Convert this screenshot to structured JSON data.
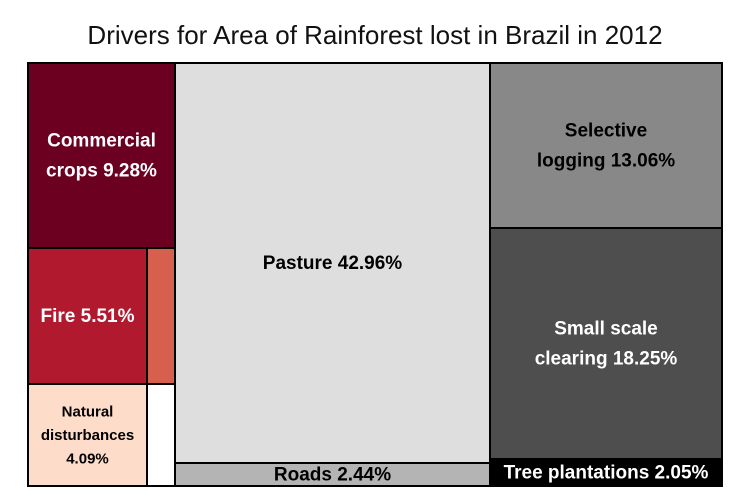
{
  "chart_data": {
    "type": "treemap",
    "title": "Drivers for Area of Rainforest lost in Brazil in 2012",
    "items": [
      {
        "name": "Commercial crops",
        "value": 9.28,
        "label_lines": [
          "Commercial",
          "crops 9.28%"
        ],
        "color": "#6b0020",
        "text_color": "#ffffff"
      },
      {
        "name": "Fire",
        "value": 5.51,
        "label_lines": [
          "Fire 5.51%"
        ],
        "color": "#b0192e",
        "text_color": "#ffffff"
      },
      {
        "name": "Natural disturbances",
        "value": 4.09,
        "label_lines": [
          "Natural",
          "disturbances",
          "4.09%"
        ],
        "color": "#fddcc9",
        "text_color": "#000000"
      },
      {
        "name": "Pasture",
        "value": 42.96,
        "label_lines": [
          "Pasture 42.96%"
        ],
        "color": "#dedede",
        "text_color": "#000000"
      },
      {
        "name": "Roads",
        "value": 2.44,
        "label_lines": [
          "Roads 2.44%"
        ],
        "color": "#b4b4b4",
        "text_color": "#000000"
      },
      {
        "name": "Selective logging",
        "value": 13.06,
        "label_lines": [
          "Selective",
          "logging 13.06%"
        ],
        "color": "#888888",
        "text_color": "#000000"
      },
      {
        "name": "Small scale clearing",
        "value": 18.25,
        "label_lines": [
          "Small scale",
          "clearing 18.25%"
        ],
        "color": "#4e4e4e",
        "text_color": "#ffffff"
      },
      {
        "name": "Tree plantations",
        "value": 2.05,
        "label_lines": [
          "Tree plantations 2.05%"
        ],
        "color": "#000000",
        "text_color": "#ffffff"
      }
    ],
    "unlabeled_items": [
      {
        "color": "#d6604d"
      },
      {
        "color": "#ffffff"
      }
    ]
  }
}
